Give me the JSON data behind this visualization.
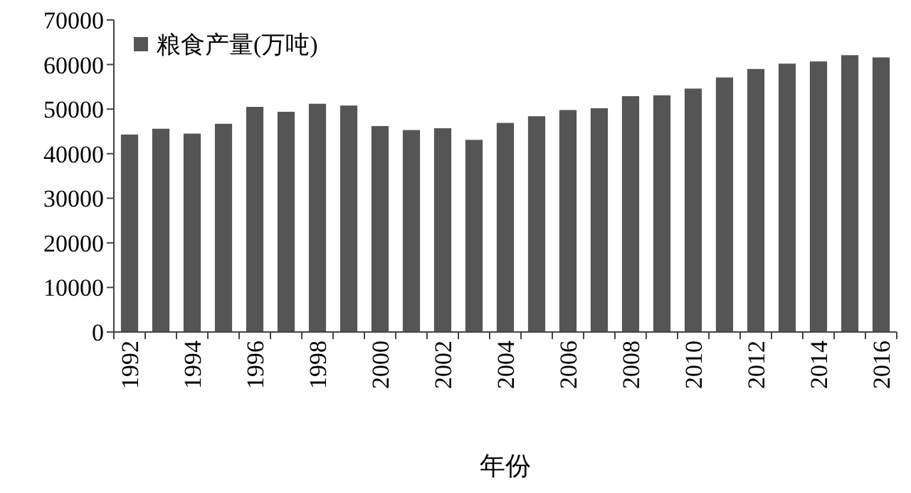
{
  "chart_data": {
    "type": "bar",
    "xlabel": "年份",
    "categories": [
      "1992",
      null,
      "1994",
      null,
      "1996",
      null,
      "1998",
      null,
      "2000",
      null,
      "2002",
      null,
      "2004",
      null,
      "2006",
      null,
      "2008",
      null,
      "2010",
      null,
      "2012",
      null,
      "2014",
      null,
      "2016"
    ],
    "series": [
      {
        "name": "粮食产量(万吨)",
        "color": "#555555",
        "values": [
          44300,
          45600,
          44500,
          46700,
          50500,
          49400,
          51200,
          50800,
          46200,
          45300,
          45700,
          43100,
          46900,
          48400,
          49800,
          50200,
          52900,
          53100,
          54600,
          57100,
          59000,
          60200,
          60700,
          62100,
          61600
        ]
      }
    ],
    "ylim": [
      0,
      70000
    ],
    "yticks": [
      0,
      10000,
      20000,
      30000,
      40000,
      50000,
      60000,
      70000
    ],
    "grid": false,
    "legend": "top left"
  }
}
